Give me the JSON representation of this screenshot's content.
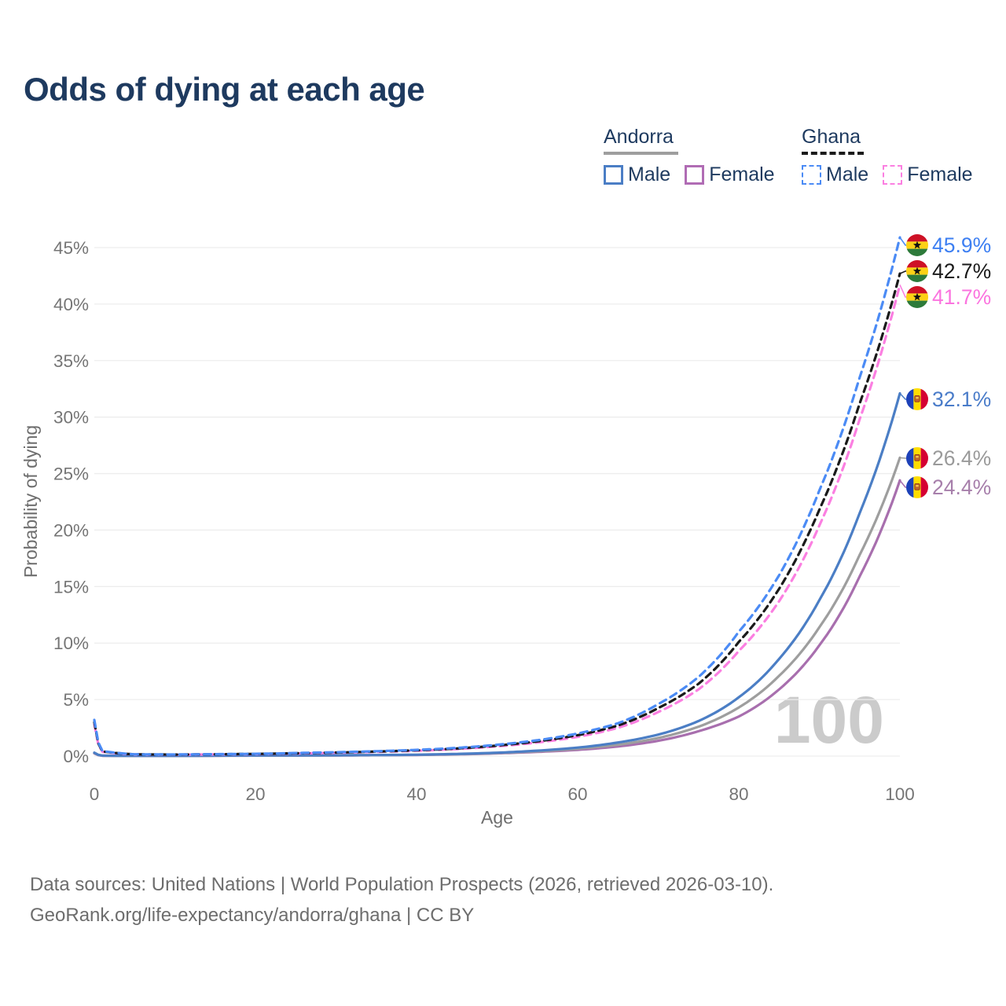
{
  "title": "Odds of dying at each age",
  "legend": {
    "groups": [
      {
        "title": "Andorra",
        "line_style": "solid",
        "underline_color": "#9e9e9e",
        "items": [
          {
            "label": "Male",
            "color": "#4b7ec5",
            "dashed": false
          },
          {
            "label": "Female",
            "color": "#b06cb4",
            "dashed": false
          }
        ]
      },
      {
        "title": "Ghana",
        "line_style": "dashed",
        "underline_color": "#1a1a1a",
        "items": [
          {
            "label": "Male",
            "color": "#4b8bf5",
            "dashed": true
          },
          {
            "label": "Female",
            "color": "#fb7fe1",
            "dashed": true
          }
        ]
      }
    ]
  },
  "source_line1": "Data sources: United Nations | World Population Prospects (2026, retrieved 2026-03-10).",
  "source_line2": "GeoRank.org/life-expectancy/andorra/ghana | CC BY",
  "chart_data": {
    "type": "line",
    "title": "Odds of dying at each age",
    "xlabel": "Age",
    "ylabel": "Probability of dying",
    "xlim": [
      0,
      100
    ],
    "ylim_pct": [
      0,
      46
    ],
    "grid": "horizontal",
    "grid_color": "#ededed",
    "tick_color": "#757575",
    "axis_label_color": "#6e6e6e",
    "age_indicator": "100",
    "watermark_color": "#cbcbcb",
    "x_ticks": [
      {
        "v": 0,
        "label": "0"
      },
      {
        "v": 20,
        "label": "20"
      },
      {
        "v": 40,
        "label": "40"
      },
      {
        "v": 60,
        "label": "60"
      },
      {
        "v": 80,
        "label": "80"
      },
      {
        "v": 100,
        "label": "100"
      }
    ],
    "y_ticks": [
      {
        "v": 0,
        "label": "0%"
      },
      {
        "v": 5,
        "label": "5%"
      },
      {
        "v": 10,
        "label": "10%"
      },
      {
        "v": 15,
        "label": "15%"
      },
      {
        "v": 20,
        "label": "20%"
      },
      {
        "v": 25,
        "label": "25%"
      },
      {
        "v": 30,
        "label": "30%"
      },
      {
        "v": 35,
        "label": "35%"
      },
      {
        "v": 40,
        "label": "40%"
      },
      {
        "v": 45,
        "label": "45%"
      }
    ],
    "series": [
      {
        "id": "andorra_female",
        "country": "Andorra",
        "sex": "Female",
        "color": "#a86fae",
        "dashed": false,
        "end_value_pct": 24.4,
        "end_label": "24.4%",
        "label_color": "#a77fab",
        "points": [
          [
            0,
            0.24
          ],
          [
            1,
            0.03
          ],
          [
            5,
            0.016
          ],
          [
            10,
            0.016
          ],
          [
            15,
            0.03
          ],
          [
            20,
            0.04
          ],
          [
            25,
            0.05
          ],
          [
            30,
            0.06
          ],
          [
            35,
            0.075
          ],
          [
            40,
            0.1
          ],
          [
            45,
            0.15
          ],
          [
            50,
            0.24
          ],
          [
            55,
            0.37
          ],
          [
            60,
            0.55
          ],
          [
            65,
            0.85
          ],
          [
            70,
            1.35
          ],
          [
            75,
            2.2
          ],
          [
            80,
            3.5
          ],
          [
            85,
            5.9
          ],
          [
            90,
            9.8
          ],
          [
            95,
            15.9
          ],
          [
            100,
            24.4
          ]
        ]
      },
      {
        "id": "andorra_total",
        "country": "Andorra",
        "sex": "Both",
        "color": "#9e9e9e",
        "dashed": false,
        "end_value_pct": 26.4,
        "end_label": "26.4%",
        "label_color": "#9a9a9a",
        "points": [
          [
            0,
            0.27
          ],
          [
            1,
            0.035
          ],
          [
            5,
            0.018
          ],
          [
            10,
            0.018
          ],
          [
            15,
            0.035
          ],
          [
            20,
            0.045
          ],
          [
            25,
            0.055
          ],
          [
            30,
            0.065
          ],
          [
            35,
            0.08
          ],
          [
            40,
            0.11
          ],
          [
            45,
            0.17
          ],
          [
            50,
            0.27
          ],
          [
            55,
            0.42
          ],
          [
            60,
            0.65
          ],
          [
            65,
            1.0
          ],
          [
            70,
            1.6
          ],
          [
            75,
            2.6
          ],
          [
            80,
            4.3
          ],
          [
            85,
            7.1
          ],
          [
            90,
            11.4
          ],
          [
            95,
            17.8
          ],
          [
            100,
            26.4
          ]
        ]
      },
      {
        "id": "andorra_male",
        "country": "Andorra",
        "sex": "Male",
        "color": "#4b7ec5",
        "dashed": false,
        "end_value_pct": 32.1,
        "end_label": "32.1%",
        "label_color": "#4a7cc9",
        "points": [
          [
            0,
            0.3
          ],
          [
            1,
            0.04
          ],
          [
            5,
            0.02
          ],
          [
            10,
            0.02
          ],
          [
            15,
            0.04
          ],
          [
            20,
            0.05
          ],
          [
            25,
            0.06
          ],
          [
            30,
            0.07
          ],
          [
            35,
            0.09
          ],
          [
            40,
            0.12
          ],
          [
            45,
            0.19
          ],
          [
            50,
            0.3
          ],
          [
            55,
            0.48
          ],
          [
            60,
            0.75
          ],
          [
            65,
            1.2
          ],
          [
            70,
            1.9
          ],
          [
            75,
            3.1
          ],
          [
            80,
            5.2
          ],
          [
            85,
            8.6
          ],
          [
            90,
            13.8
          ],
          [
            95,
            21.5
          ],
          [
            100,
            32.1
          ]
        ]
      },
      {
        "id": "ghana_female",
        "country": "Ghana",
        "sex": "Female",
        "color": "#fb7fe1",
        "dashed": true,
        "end_value_pct": 41.7,
        "end_label": "41.7%",
        "label_color": "#fb74df",
        "points": [
          [
            0,
            2.8
          ],
          [
            1,
            0.38
          ],
          [
            5,
            0.14
          ],
          [
            10,
            0.12
          ],
          [
            15,
            0.15
          ],
          [
            20,
            0.17
          ],
          [
            25,
            0.23
          ],
          [
            30,
            0.29
          ],
          [
            35,
            0.37
          ],
          [
            40,
            0.47
          ],
          [
            45,
            0.62
          ],
          [
            50,
            0.86
          ],
          [
            55,
            1.2
          ],
          [
            60,
            1.7
          ],
          [
            65,
            2.5
          ],
          [
            70,
            3.9
          ],
          [
            75,
            5.9
          ],
          [
            80,
            9.3
          ],
          [
            85,
            13.7
          ],
          [
            90,
            20.4
          ],
          [
            95,
            29.8
          ],
          [
            100,
            41.7
          ]
        ]
      },
      {
        "id": "ghana_total",
        "country": "Ghana",
        "sex": "Both",
        "color": "#1a1a1a",
        "dashed": true,
        "end_value_pct": 42.7,
        "end_label": "42.7%",
        "label_color": "#1a1a1a",
        "points": [
          [
            0,
            3.0
          ],
          [
            1,
            0.42
          ],
          [
            5,
            0.15
          ],
          [
            10,
            0.13
          ],
          [
            15,
            0.16
          ],
          [
            20,
            0.19
          ],
          [
            25,
            0.25
          ],
          [
            30,
            0.31
          ],
          [
            35,
            0.4
          ],
          [
            40,
            0.51
          ],
          [
            45,
            0.67
          ],
          [
            50,
            0.93
          ],
          [
            55,
            1.3
          ],
          [
            60,
            1.85
          ],
          [
            65,
            2.7
          ],
          [
            70,
            4.25
          ],
          [
            75,
            6.4
          ],
          [
            80,
            10.1
          ],
          [
            85,
            14.8
          ],
          [
            90,
            21.8
          ],
          [
            95,
            31.2
          ],
          [
            100,
            42.7
          ]
        ]
      },
      {
        "id": "ghana_male",
        "country": "Ghana",
        "sex": "Male",
        "color": "#4b8bf5",
        "dashed": true,
        "end_value_pct": 45.9,
        "end_label": "45.9%",
        "label_color": "#3d7ff2",
        "points": [
          [
            0,
            3.2
          ],
          [
            1,
            0.45
          ],
          [
            5,
            0.16
          ],
          [
            10,
            0.14
          ],
          [
            15,
            0.17
          ],
          [
            20,
            0.2
          ],
          [
            25,
            0.27
          ],
          [
            30,
            0.34
          ],
          [
            35,
            0.43
          ],
          [
            40,
            0.55
          ],
          [
            45,
            0.72
          ],
          [
            50,
            1.0
          ],
          [
            55,
            1.4
          ],
          [
            60,
            2.0
          ],
          [
            65,
            2.9
          ],
          [
            70,
            4.6
          ],
          [
            75,
            7.0
          ],
          [
            80,
            11.0
          ],
          [
            85,
            16.0
          ],
          [
            90,
            23.5
          ],
          [
            95,
            33.5
          ],
          [
            100,
            45.9
          ]
        ]
      }
    ]
  }
}
